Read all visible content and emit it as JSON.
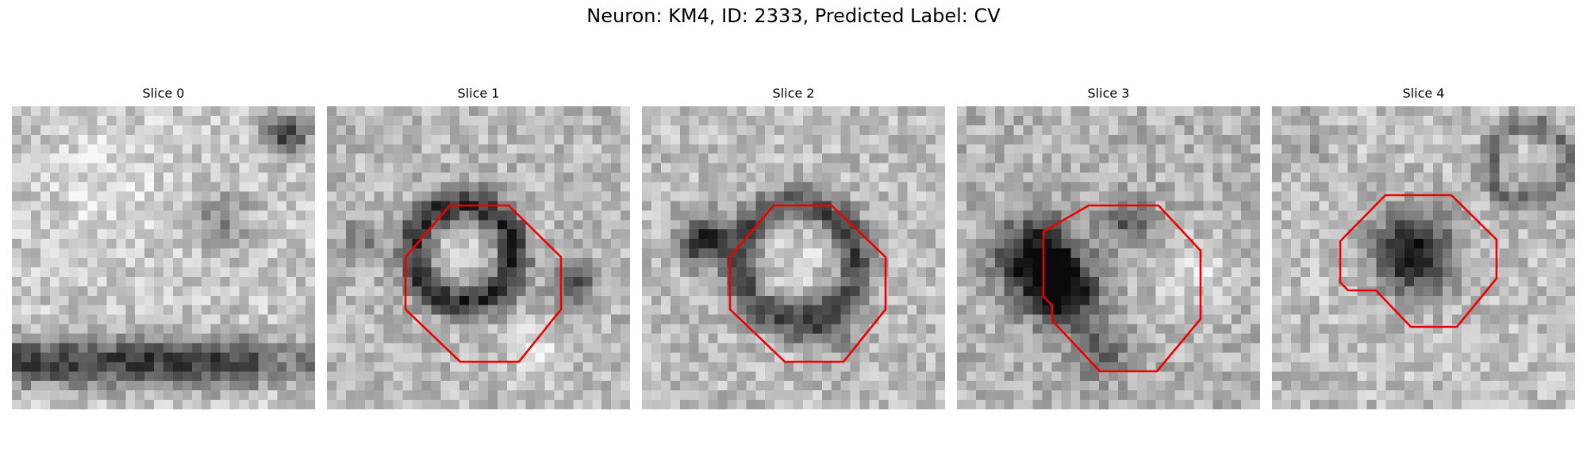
{
  "figure": {
    "title": "Neuron: KM4, ID: 2333, Predicted Label: CV"
  },
  "slices": [
    {
      "title": "Slice 0",
      "has_roi": false
    },
    {
      "title": "Slice 1",
      "has_roi": true
    },
    {
      "title": "Slice 2",
      "has_roi": true
    },
    {
      "title": "Slice 3",
      "has_roi": true
    },
    {
      "title": "Slice 4",
      "has_roi": true
    }
  ],
  "colors": {
    "roi_outline": "#ee0000",
    "background": "#ffffff"
  }
}
